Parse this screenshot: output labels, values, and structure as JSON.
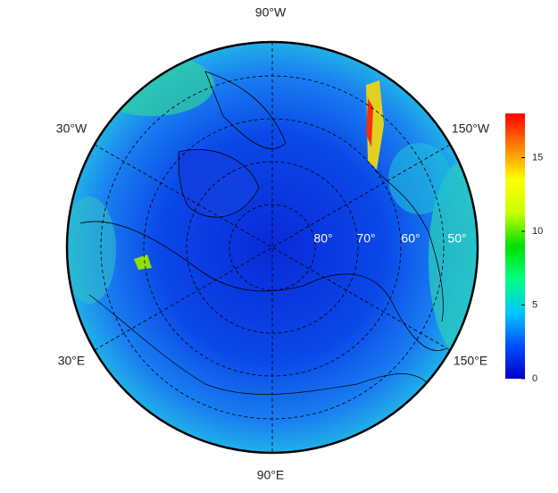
{
  "map": {
    "lon_labels": [
      "90°W",
      "30°W",
      "150°W",
      "30°E",
      "150°E",
      "90°E"
    ],
    "lat_labels": [
      "80°",
      "70°",
      "60°",
      "50°"
    ],
    "colorbar": {
      "lim": [
        0,
        18
      ],
      "ticks": [
        0,
        5,
        10,
        15
      ],
      "colors": [
        "#0000c8",
        "#0050ff",
        "#00c8ff",
        "#00ff80",
        "#00e000",
        "#c8ff00",
        "#ffff00",
        "#ff8000",
        "#ff0000"
      ]
    }
  }
}
